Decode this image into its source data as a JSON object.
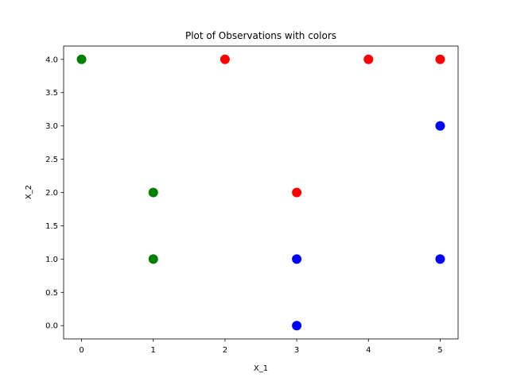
{
  "chart_data": {
    "type": "scatter",
    "title": "Plot of Observations with colors",
    "xlabel": "X_1",
    "ylabel": "X_2",
    "xlim": [
      -0.25,
      5.25
    ],
    "ylim": [
      -0.2,
      4.2
    ],
    "xticks": [
      0,
      1,
      2,
      3,
      4,
      5
    ],
    "xtick_labels": [
      "0",
      "1",
      "2",
      "3",
      "4",
      "5"
    ],
    "yticks": [
      0.0,
      0.5,
      1.0,
      1.5,
      2.0,
      2.5,
      3.0,
      3.5,
      4.0
    ],
    "ytick_labels": [
      "0.0",
      "0.5",
      "1.0",
      "1.5",
      "2.0",
      "2.5",
      "3.0",
      "3.5",
      "4.0"
    ],
    "grid": false,
    "legend": null,
    "points": [
      {
        "x": 0,
        "y": 4,
        "color": "#008000"
      },
      {
        "x": 1,
        "y": 2,
        "color": "#008000"
      },
      {
        "x": 1,
        "y": 1,
        "color": "#008000"
      },
      {
        "x": 2,
        "y": 4,
        "color": "#ff0000"
      },
      {
        "x": 3,
        "y": 2,
        "color": "#ff0000"
      },
      {
        "x": 4,
        "y": 4,
        "color": "#ff0000"
      },
      {
        "x": 5,
        "y": 4,
        "color": "#ff0000"
      },
      {
        "x": 5,
        "y": 3,
        "color": "#0000ff"
      },
      {
        "x": 3,
        "y": 1,
        "color": "#0000ff"
      },
      {
        "x": 5,
        "y": 1,
        "color": "#0000ff"
      },
      {
        "x": 3,
        "y": 0,
        "color": "#0000ff"
      }
    ]
  }
}
